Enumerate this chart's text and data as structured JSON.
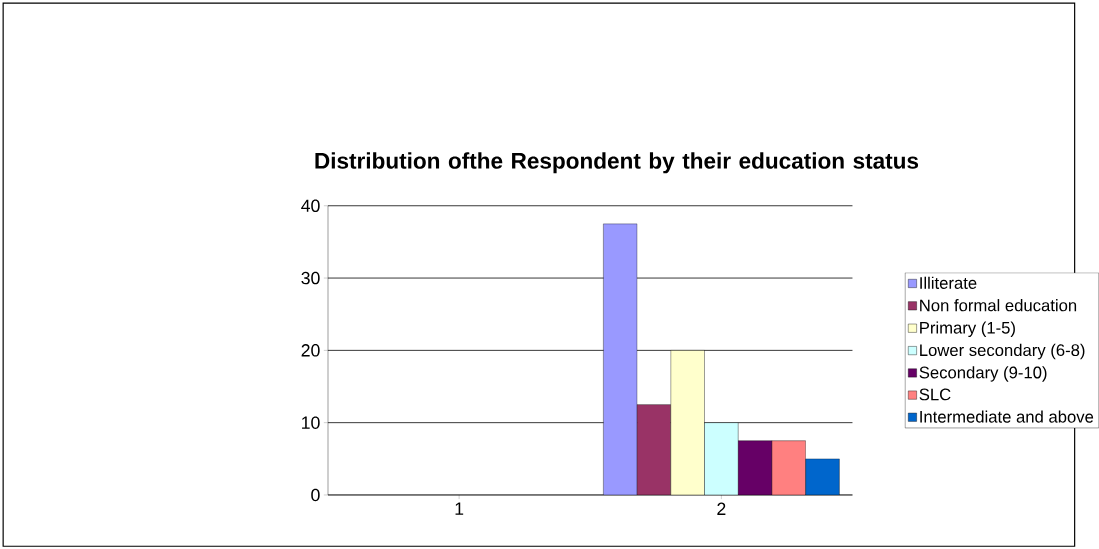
{
  "chart_data": {
    "type": "bar",
    "title": "Distribution ofthe Respondent by their education status",
    "categories": [
      "1",
      "2"
    ],
    "series": [
      {
        "name": "Illiterate",
        "color": "#9999ff",
        "values": [
          null,
          37.5
        ]
      },
      {
        "name": "Non formal education",
        "color": "#993366",
        "values": [
          null,
          12.5
        ]
      },
      {
        "name": "Primary (1-5)",
        "color": "#ffffcc",
        "values": [
          null,
          20
        ]
      },
      {
        "name": "Lower secondary (6-8)",
        "color": "#ccffff",
        "values": [
          null,
          10
        ]
      },
      {
        "name": "Secondary (9-10)",
        "color": "#660066",
        "values": [
          null,
          7.5
        ]
      },
      {
        "name": "SLC",
        "color": "#ff8080",
        "values": [
          null,
          7.5
        ]
      },
      {
        "name": "Intermediate and above",
        "color": "#0066cc",
        "values": [
          null,
          5
        ]
      }
    ],
    "ylim": [
      0,
      40
    ],
    "yticks": [
      0,
      10,
      20,
      30,
      40
    ],
    "grid": "y",
    "legend": "right"
  }
}
